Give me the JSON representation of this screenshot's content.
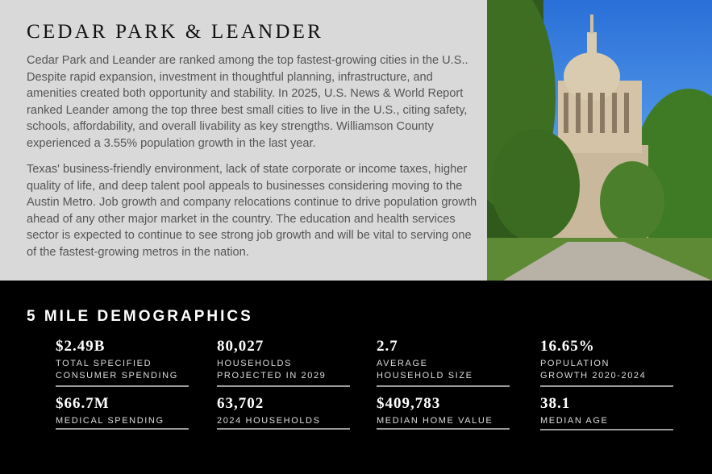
{
  "title": "CEDAR PARK & LEANDER",
  "paragraphs": [
    "Cedar Park and Leander are ranked among the top fastest-growing cities in the U.S.. Despite rapid expansion, investment in thoughtful planning, infrastructure, and amenities created both opportunity and stability. In 2025, U.S. News & World Report ranked Leander among the top three best small cities to live in the U.S., citing safety, schools, affordability, and overall livability as key strengths. Williamson County experienced a 3.55% population growth in the last year.",
    "Texas' business-friendly environment, lack of state corporate or income taxes, higher quality of life, and deep talent pool appeals to businesses considering moving to the Austin Metro. Job growth and company relocations continue to drive population growth ahead of any other major market in the country. The education and health services sector is expected to continue to see strong job growth and will be vital to serving one of the fastest-growing metros in the nation."
  ],
  "photo": "texas-capitol-photo",
  "demographics": {
    "title": "5 MILE DEMOGRAPHICS",
    "stats": [
      {
        "value": "$2.49B",
        "label1": "TOTAL SPECIFIED",
        "label2": "CONSUMER SPENDING"
      },
      {
        "value": "80,027",
        "label1": "HOUSEHOLDS",
        "label2": "PROJECTED IN 2029"
      },
      {
        "value": "2.7",
        "label1": "AVERAGE",
        "label2": "HOUSEHOLD SIZE"
      },
      {
        "value": "16.65%",
        "label1": "POPULATION",
        "label2": "GROWTH 2020-2024"
      },
      {
        "value": "$66.7M",
        "label1": "MEDICAL SPENDING",
        "label2": ""
      },
      {
        "value": "63,702",
        "label1": "2024 HOUSEHOLDS",
        "label2": ""
      },
      {
        "value": "$409,783",
        "label1": "MEDIAN HOME VALUE",
        "label2": ""
      },
      {
        "value": "38.1",
        "label1": "MEDIAN AGE",
        "label2": ""
      }
    ]
  }
}
